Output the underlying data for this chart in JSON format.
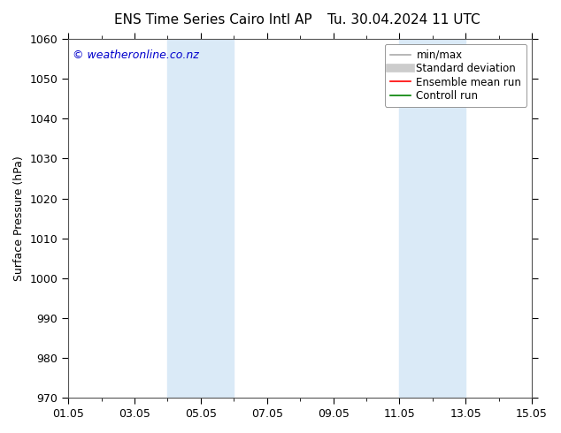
{
  "title_left": "ENS Time Series Cairo Intl AP",
  "title_right": "Tu. 30.04.2024 11 UTC",
  "ylabel": "Surface Pressure (hPa)",
  "ylim": [
    970,
    1060
  ],
  "yticks": [
    970,
    980,
    990,
    1000,
    1010,
    1020,
    1030,
    1040,
    1050,
    1060
  ],
  "xlim_start": 0,
  "xlim_end": 14,
  "xtick_labels": [
    "01.05",
    "03.05",
    "05.05",
    "07.05",
    "09.05",
    "11.05",
    "13.05",
    "15.05"
  ],
  "xtick_positions": [
    0,
    2,
    4,
    6,
    8,
    10,
    12,
    14
  ],
  "shaded_bands": [
    {
      "x_start": 3.0,
      "x_end": 5.0
    },
    {
      "x_start": 10.0,
      "x_end": 12.0
    }
  ],
  "shade_color": "#daeaf7",
  "copyright_text": "© weatheronline.co.nz",
  "copyright_color": "#0000cc",
  "copyright_fontsize": 9,
  "legend_items": [
    {
      "label": "min/max",
      "color": "#aaaaaa",
      "lw": 1.2,
      "type": "line"
    },
    {
      "label": "Standard deviation",
      "color": "#cccccc",
      "lw": 7,
      "type": "line"
    },
    {
      "label": "Ensemble mean run",
      "color": "red",
      "lw": 1.2,
      "type": "line"
    },
    {
      "label": "Controll run",
      "color": "green",
      "lw": 1.2,
      "type": "line"
    }
  ],
  "background_color": "#ffffff",
  "title_fontsize": 11,
  "axis_label_fontsize": 9,
  "tick_fontsize": 9,
  "legend_fontsize": 8.5
}
